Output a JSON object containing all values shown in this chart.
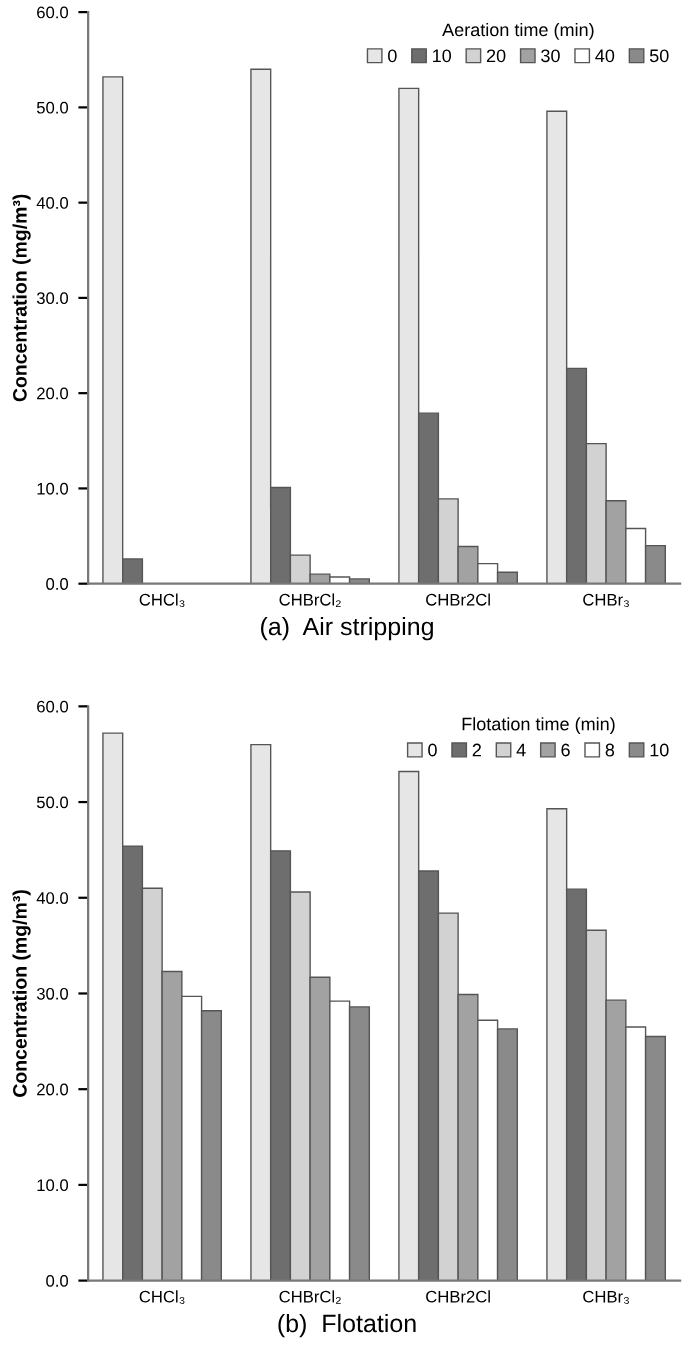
{
  "chart_data": [
    {
      "type": "bar",
      "title": "(a)  Air stripping",
      "ylabel": "Concentration (mg/m³)",
      "legend_title": "Aeration time (min)",
      "legend": "top right",
      "categories": [
        "CHCl₃",
        "CHBrCl₂",
        "CHBr2Cl",
        "CHBr₃"
      ],
      "ylim": [
        0,
        60
      ],
      "yticks": [
        {
          "value": 0,
          "label": "0.0"
        },
        {
          "value": 10,
          "label": "10.0"
        },
        {
          "value": 20,
          "label": "20.0"
        },
        {
          "value": 30,
          "label": "30.0"
        },
        {
          "value": 40,
          "label": "40.0"
        },
        {
          "value": 50,
          "label": "50.0"
        },
        {
          "value": 60,
          "label": "60.0"
        }
      ],
      "grid": false,
      "series": [
        {
          "name": "0",
          "color": "#e6e6e6",
          "values": [
            53.2,
            54.0,
            52.0,
            49.6
          ]
        },
        {
          "name": "10",
          "color": "#6e6e6e",
          "values": [
            2.6,
            10.1,
            17.9,
            22.6
          ]
        },
        {
          "name": "20",
          "color": "#d2d2d2",
          "values": [
            null,
            3.0,
            8.9,
            14.7
          ]
        },
        {
          "name": "30",
          "color": "#a2a2a2",
          "values": [
            null,
            1.0,
            3.9,
            8.7
          ]
        },
        {
          "name": "40",
          "color": "#ffffff",
          "values": [
            null,
            0.7,
            2.1,
            5.8
          ]
        },
        {
          "name": "50",
          "color": "#8a8a8a",
          "values": [
            null,
            0.5,
            1.2,
            4.0
          ]
        }
      ]
    },
    {
      "type": "bar",
      "title": "(b)  Flotation",
      "ylabel": "Concentration (mg/m³)",
      "legend_title": "Flotation time (min)",
      "legend": "top right",
      "categories": [
        "CHCl₃",
        "CHBrCl₂",
        "CHBr2Cl",
        "CHBr₃"
      ],
      "ylim": [
        0,
        60
      ],
      "yticks": [
        {
          "value": 0,
          "label": "0.0"
        },
        {
          "value": 10,
          "label": "10.0"
        },
        {
          "value": 20,
          "label": "20.0"
        },
        {
          "value": 30,
          "label": "30.0"
        },
        {
          "value": 40,
          "label": "40.0"
        },
        {
          "value": 50,
          "label": "50.0"
        },
        {
          "value": 60,
          "label": "60.0"
        }
      ],
      "grid": false,
      "series": [
        {
          "name": "0",
          "color": "#e6e6e6",
          "values": [
            57.2,
            56.0,
            53.2,
            49.3
          ]
        },
        {
          "name": "2",
          "color": "#6e6e6e",
          "values": [
            45.4,
            44.9,
            42.8,
            40.9
          ]
        },
        {
          "name": "4",
          "color": "#d2d2d2",
          "values": [
            41.0,
            40.6,
            38.4,
            36.6
          ]
        },
        {
          "name": "6",
          "color": "#a2a2a2",
          "values": [
            32.3,
            31.7,
            29.9,
            29.3
          ]
        },
        {
          "name": "8",
          "color": "#ffffff",
          "values": [
            29.7,
            29.2,
            27.2,
            26.5
          ]
        },
        {
          "name": "10",
          "color": "#8a8a8a",
          "values": [
            28.2,
            28.6,
            26.3,
            25.5
          ]
        }
      ]
    }
  ]
}
